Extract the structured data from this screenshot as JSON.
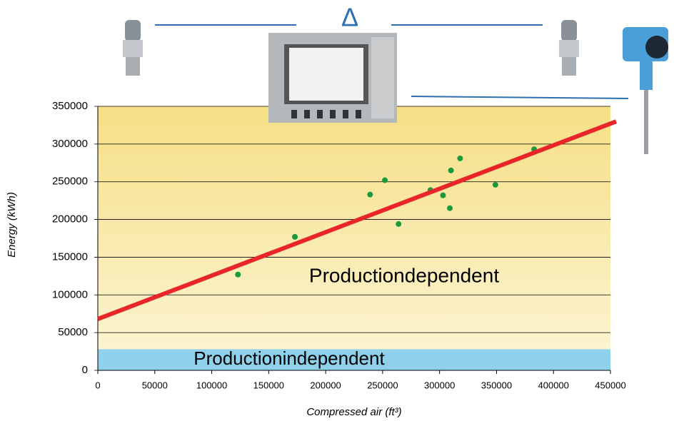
{
  "chart_data": {
    "type": "scatter",
    "symbol": "Δ",
    "x_label": "Compressed air (ft³)",
    "y_label": "Energy (kWh)",
    "annotations": [
      "Productiondependent"
    ],
    "band": {
      "label": "Productionindependent",
      "range": [
        0,
        28000
      ],
      "color": "#8fd0ea"
    },
    "series": [
      {
        "color": "#1a9a3c",
        "x": [
          123000,
          173000,
          239000,
          252000,
          264000,
          292000,
          303000,
          310000,
          309000,
          318000,
          349000,
          383000
        ],
        "values": [
          127000,
          177000,
          233000,
          252000,
          194000,
          239000,
          232000,
          265000,
          215000,
          281000,
          246000,
          293000
        ]
      }
    ],
    "trend_line": {
      "color": "#e8262a",
      "x": [
        0,
        455000
      ],
      "y": [
        68000,
        330000
      ]
    },
    "xlim": [
      0,
      450000
    ],
    "xticks": [
      0,
      50000,
      100000,
      150000,
      200000,
      250000,
      300000,
      350000,
      400000,
      450000
    ],
    "ylim": [
      0,
      350000
    ],
    "yticks": [
      0,
      50000,
      100000,
      150000,
      200000,
      250000,
      300000,
      350000
    ],
    "grid": true
  }
}
